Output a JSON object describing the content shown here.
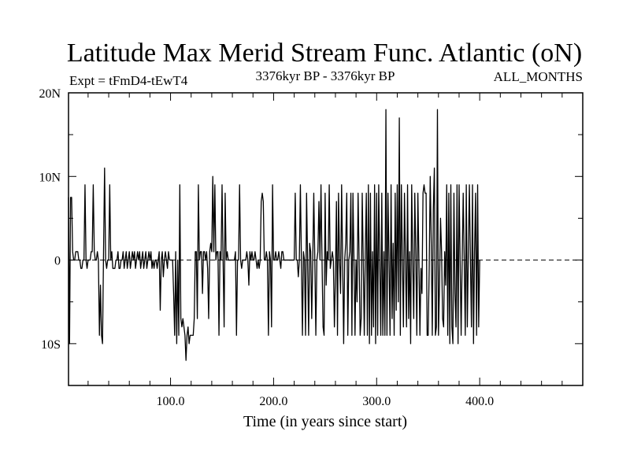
{
  "chart_data": {
    "type": "line",
    "title": "Latitude Max Merid Stream Func. Atlantic (oN)",
    "subtitle_left": "Expt = tFmD4-tEwT4",
    "subtitle_center": "3376kyr BP - 3376kyr BP",
    "subtitle_right": "ALL_MONTHS",
    "xlabel": "Time (in years since start)",
    "ylabel": "",
    "xlim": [
      1,
      500
    ],
    "ylim": [
      -15,
      20
    ],
    "x_ticks": [
      {
        "value": 100,
        "label": "100.0"
      },
      {
        "value": 200,
        "label": "200.0"
      },
      {
        "value": 300,
        "label": "300.0"
      },
      {
        "value": 400,
        "label": "400.0"
      }
    ],
    "y_ticks": [
      {
        "value": 20,
        "label": "20N"
      },
      {
        "value": 10,
        "label": "10N"
      },
      {
        "value": 0,
        "label": "0"
      },
      {
        "value": -10,
        "label": "10S"
      }
    ],
    "zero_line": "dashed",
    "line_color": "#000000",
    "series": [
      {
        "name": "",
        "x_start": 1,
        "x_step": 1,
        "values": [
          7.5,
          -10,
          7.5,
          7.5,
          1,
          0,
          0,
          1,
          1,
          1,
          0,
          0,
          -1,
          -1,
          0,
          0,
          9,
          0,
          -1,
          0,
          0,
          0,
          1,
          1,
          9,
          1,
          0,
          0,
          1,
          0,
          -9,
          -3,
          -9,
          -10,
          1,
          11,
          0,
          -1,
          0,
          0,
          9,
          0,
          1,
          -1,
          -1,
          -1,
          0,
          0,
          1,
          -1,
          -1,
          0,
          0,
          1,
          -1,
          0,
          1,
          -1,
          0,
          1,
          -1,
          0,
          1,
          0,
          1,
          -1,
          0,
          1,
          0,
          1,
          -1,
          0,
          1,
          -1,
          0,
          1,
          -1,
          0,
          1,
          0,
          1,
          -1,
          0,
          -1,
          0,
          0,
          -1,
          0,
          1,
          -6,
          0,
          1,
          -2,
          0,
          1,
          0,
          -1,
          1,
          0,
          0,
          0,
          0,
          -4,
          -9,
          1,
          -10,
          0,
          -9,
          9,
          -7,
          -8,
          -7,
          -8,
          -9,
          -12,
          -9,
          -8,
          -10,
          -9,
          -9,
          -9,
          -9,
          -7,
          1,
          1,
          -7,
          9,
          0,
          1,
          1,
          -4,
          1,
          1,
          0,
          1,
          -1,
          -7,
          1,
          2,
          1,
          10,
          1,
          9,
          0,
          1,
          1,
          -9,
          1,
          0,
          9,
          0,
          -8,
          8,
          0,
          1,
          0,
          0,
          0,
          0,
          0,
          0,
          0,
          1,
          -9,
          0,
          0,
          9,
          0,
          -1,
          0,
          0,
          0,
          0,
          1,
          0,
          -3,
          1,
          0,
          1,
          0,
          0,
          1,
          0,
          -1,
          0,
          -1,
          0,
          7,
          8,
          7,
          0,
          0,
          1,
          0,
          -9,
          1,
          0,
          -8,
          9,
          0,
          0,
          1,
          0,
          0,
          1,
          0,
          -1,
          1,
          1,
          0,
          0,
          0,
          0,
          0,
          0,
          0,
          0,
          0,
          0,
          0,
          8,
          0,
          0,
          -2,
          0,
          9,
          0,
          -9,
          1,
          0,
          -9,
          8,
          0,
          -9,
          2,
          1,
          -7,
          0,
          8,
          0,
          -9,
          0,
          1,
          7,
          0,
          9,
          0,
          -8,
          -9,
          8,
          -3,
          1,
          0,
          9,
          -1,
          0,
          1,
          0,
          -8,
          -2,
          7,
          -9,
          8,
          0,
          -4,
          9,
          0,
          -10,
          0,
          2,
          8,
          -9,
          0,
          1,
          8,
          -9,
          8,
          0,
          -9,
          0,
          -5,
          8,
          0,
          -9,
          -7,
          8,
          0,
          -9,
          1,
          8,
          -9,
          9,
          -10,
          8,
          -9,
          1,
          -8,
          9,
          -10,
          8,
          -9,
          9,
          0,
          -9,
          8,
          -9,
          1,
          -9,
          18,
          -9,
          8,
          0,
          -9,
          9,
          -7,
          2,
          -9,
          8,
          -6,
          9,
          -5,
          17,
          -9,
          9,
          0,
          -8,
          8,
          0,
          -8,
          9,
          -7,
          1,
          -10,
          9,
          0,
          -7,
          8,
          1,
          -9,
          8,
          0,
          -9,
          -1,
          -4,
          8,
          9,
          8,
          8,
          -9,
          -9,
          -1,
          10,
          2,
          -9,
          6,
          11,
          -9,
          -8,
          18,
          -9,
          -3,
          5,
          1,
          -7,
          -8,
          1,
          -3,
          9,
          -9,
          8,
          -10,
          9,
          -8,
          -10,
          8,
          -4,
          -8,
          9,
          -10,
          9,
          0,
          -9,
          0,
          8,
          0,
          -9,
          9,
          -8,
          1,
          9,
          0,
          -8,
          9,
          -10,
          1,
          8,
          -9,
          9,
          -8,
          0
        ]
      }
    ]
  }
}
